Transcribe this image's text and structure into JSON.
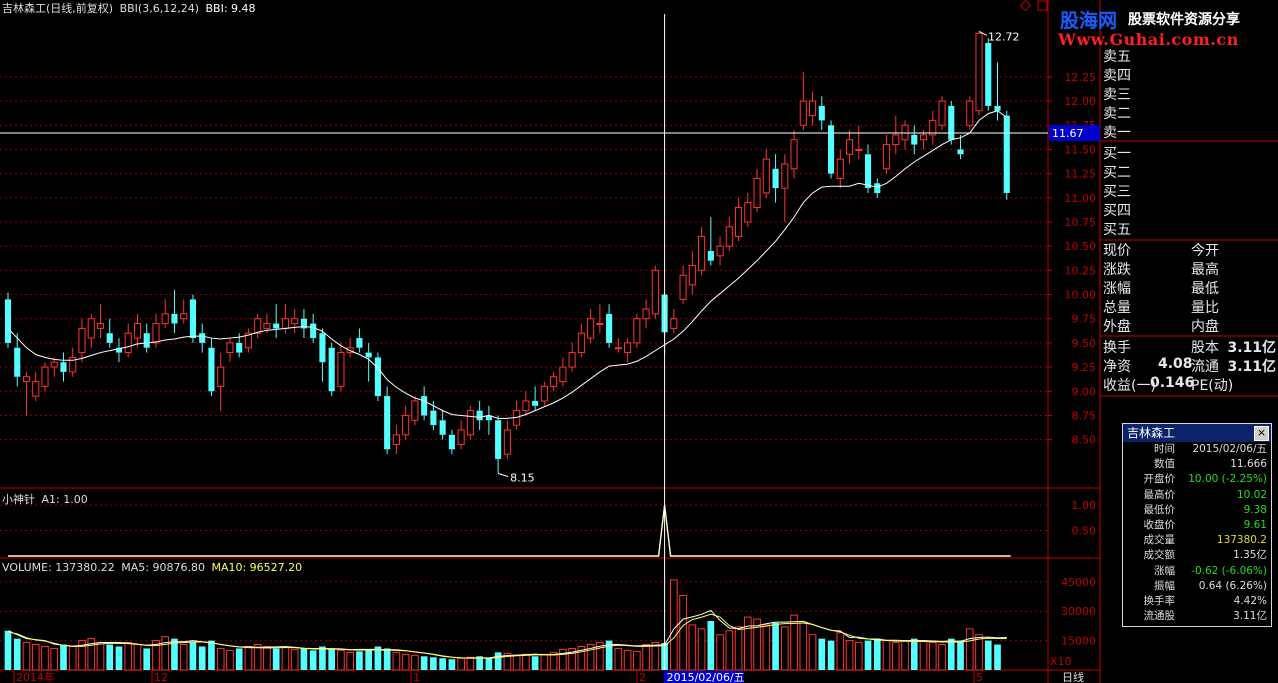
{
  "header": {
    "stock": "吉林森工(日线,前复权)",
    "indicator": "BBI(3,6,12,24)",
    "value": "BBI: 9.48",
    "sub1": "小神针",
    "sub1_value": "A1: 1.00",
    "vol_label": "VOLUME: 137380.22",
    "ma5": "MA5: 90876.80",
    "ma10": "MA10: 96527.20"
  },
  "logo": {
    "name": "股海网",
    "slogan": "股票软件资源分享",
    "url": "Www.Guhai.com.cn"
  },
  "price_axis": [
    "12.25",
    "12.00",
    "11.75",
    "11.50",
    "11.25",
    "11.00",
    "10.75",
    "10.50",
    "10.25",
    "10.00",
    "9.75",
    "9.50",
    "9.25",
    "9.00",
    "8.75",
    "8.50"
  ],
  "crosshair_price": "11.67",
  "max_label": "12.72",
  "min_label": "8.15",
  "sub_axis": [
    "1.00",
    "0.50"
  ],
  "vol_axis": [
    "45000",
    "30000",
    "15000"
  ],
  "vol_unit": "X10",
  "date_axis": [
    "2014年",
    "12",
    "1",
    "2",
    "5"
  ],
  "crosshair_date": "2015/02/06/五",
  "period": "日线",
  "order_book": {
    "sells": [
      "卖五",
      "卖四",
      "卖三",
      "卖二",
      "卖一"
    ],
    "buys": [
      "买一",
      "买二",
      "买三",
      "买四",
      "买五"
    ]
  },
  "quote": {
    "left": [
      "现价",
      "涨跌",
      "涨幅",
      "总量",
      "外盘"
    ],
    "right": [
      "今开",
      "最高",
      "最低",
      "量比",
      "内盘"
    ]
  },
  "fund": {
    "turnover_label": "换手",
    "capital_label": "股本",
    "capital": "3.11亿",
    "netasset_label": "净资",
    "netasset": "4.08",
    "float_label": "流通",
    "float": "3.11亿",
    "eps_label": "收益(一)",
    "eps": "0.146",
    "pe_label": "PE(动)"
  },
  "popup": {
    "title": "吉林森工",
    "close": "×",
    "rows": [
      {
        "k": "时间",
        "v": "2015/02/06/五",
        "c": "#dddddd"
      },
      {
        "k": "数值",
        "v": "11.666",
        "c": "#dddddd"
      },
      {
        "k": "开盘价",
        "v": "10.00 (-2.25%)",
        "c": "#22dd22"
      },
      {
        "k": "最高价",
        "v": "10.02",
        "c": "#22dd22"
      },
      {
        "k": "最低价",
        "v": "9.38",
        "c": "#22dd22"
      },
      {
        "k": "收盘价",
        "v": "9.61",
        "c": "#22dd22"
      },
      {
        "k": "成交量",
        "v": "137380.2",
        "c": "#dddd22"
      },
      {
        "k": "成交额",
        "v": "1.35亿",
        "c": "#dddddd"
      },
      {
        "k": "涨幅",
        "v": "-0.62 (-6.06%)",
        "c": "#22dd22"
      },
      {
        "k": "振幅",
        "v": "0.64 (6.26%)",
        "c": "#dddddd"
      },
      {
        "k": "换手率",
        "v": "4.42%",
        "c": "#dddddd"
      },
      {
        "k": "流通股",
        "v": "3.11亿",
        "c": "#dddddd"
      }
    ]
  },
  "colors": {
    "up": "#ff3232",
    "down": "#54ffff",
    "bbi": "#ffffff",
    "ma10": "#ffff55",
    "grid": "#8b0000",
    "axis": "#c00000"
  },
  "chart_data": {
    "type": "candlestick",
    "y_range": [
      8.0,
      12.9
    ],
    "candles": [
      [
        9.95,
        9.5,
        10.02,
        9.45
      ],
      [
        9.45,
        9.15,
        9.6,
        9.05
      ],
      [
        9.1,
        9.15,
        9.2,
        8.75
      ],
      [
        8.95,
        9.1,
        9.2,
        8.9
      ],
      [
        9.05,
        9.25,
        9.3,
        9.0
      ],
      [
        9.25,
        9.3,
        9.35,
        9.15
      ],
      [
        9.3,
        9.2,
        9.4,
        9.1
      ],
      [
        9.2,
        9.35,
        9.45,
        9.15
      ],
      [
        9.4,
        9.65,
        9.75,
        9.3
      ],
      [
        9.55,
        9.75,
        9.8,
        9.45
      ],
      [
        9.65,
        9.7,
        9.9,
        9.55
      ],
      [
        9.6,
        9.5,
        9.75,
        9.45
      ],
      [
        9.45,
        9.4,
        9.55,
        9.3
      ],
      [
        9.4,
        9.6,
        9.7,
        9.35
      ],
      [
        9.55,
        9.7,
        9.8,
        9.45
      ],
      [
        9.6,
        9.45,
        9.7,
        9.4
      ],
      [
        9.5,
        9.7,
        9.8,
        9.45
      ],
      [
        9.7,
        9.8,
        9.95,
        9.65
      ],
      [
        9.8,
        9.7,
        10.05,
        9.6
      ],
      [
        9.75,
        9.8,
        9.95,
        9.7
      ],
      [
        9.95,
        9.55,
        10.0,
        9.5
      ],
      [
        9.6,
        9.5,
        9.7,
        9.4
      ],
      [
        9.45,
        9.0,
        9.55,
        8.95
      ],
      [
        9.05,
        9.25,
        9.4,
        8.8
      ],
      [
        9.4,
        9.5,
        9.55,
        9.3
      ],
      [
        9.5,
        9.4,
        9.6,
        9.35
      ],
      [
        9.45,
        9.6,
        9.65,
        9.4
      ],
      [
        9.6,
        9.75,
        9.8,
        9.55
      ],
      [
        9.65,
        9.7,
        9.8,
        9.6
      ],
      [
        9.7,
        9.65,
        9.9,
        9.55
      ],
      [
        9.65,
        9.75,
        9.9,
        9.6
      ],
      [
        9.7,
        9.75,
        9.85,
        9.6
      ],
      [
        9.75,
        9.65,
        9.85,
        9.55
      ],
      [
        9.7,
        9.55,
        9.8,
        9.5
      ],
      [
        9.6,
        9.3,
        9.65,
        9.1
      ],
      [
        9.45,
        9.0,
        9.5,
        8.95
      ],
      [
        9.05,
        9.4,
        9.5,
        9.0
      ],
      [
        9.4,
        9.45,
        9.55,
        9.35
      ],
      [
        9.55,
        9.45,
        9.65,
        9.4
      ],
      [
        9.4,
        9.35,
        9.5,
        9.1
      ],
      [
        9.35,
        8.95,
        9.4,
        8.9
      ],
      [
        8.95,
        8.4,
        9.05,
        8.35
      ],
      [
        8.45,
        8.55,
        8.65,
        8.35
      ],
      [
        8.55,
        8.75,
        8.85,
        8.5
      ],
      [
        8.7,
        8.9,
        8.95,
        8.65
      ],
      [
        8.95,
        8.75,
        9.05,
        8.7
      ],
      [
        8.8,
        8.65,
        8.9,
        8.6
      ],
      [
        8.7,
        8.55,
        8.8,
        8.5
      ],
      [
        8.55,
        8.4,
        8.6,
        8.35
      ],
      [
        8.45,
        8.6,
        8.7,
        8.4
      ],
      [
        8.55,
        8.8,
        8.85,
        8.5
      ],
      [
        8.8,
        8.7,
        8.9,
        8.6
      ],
      [
        8.75,
        8.7,
        8.85,
        8.55
      ],
      [
        8.7,
        8.3,
        8.75,
        8.15
      ],
      [
        8.35,
        8.6,
        8.7,
        8.3
      ],
      [
        8.65,
        8.8,
        8.9,
        8.6
      ],
      [
        8.8,
        8.9,
        9.0,
        8.75
      ],
      [
        8.9,
        8.85,
        9.05,
        8.8
      ],
      [
        8.9,
        9.05,
        9.1,
        8.85
      ],
      [
        9.05,
        9.15,
        9.2,
        9.0
      ],
      [
        9.1,
        9.25,
        9.35,
        9.05
      ],
      [
        9.25,
        9.4,
        9.5,
        9.2
      ],
      [
        9.4,
        9.6,
        9.7,
        9.35
      ],
      [
        9.55,
        9.75,
        9.85,
        9.5
      ],
      [
        9.7,
        9.7,
        9.9,
        9.6
      ],
      [
        9.8,
        9.5,
        9.9,
        9.45
      ],
      [
        9.45,
        9.45,
        9.55,
        9.4
      ],
      [
        9.4,
        9.5,
        9.55,
        9.3
      ],
      [
        9.5,
        9.75,
        9.8,
        9.45
      ],
      [
        9.75,
        9.85,
        9.95,
        9.65
      ],
      [
        9.8,
        10.25,
        10.3,
        9.75
      ],
      [
        10.0,
        9.61,
        10.02,
        9.38
      ],
      [
        9.65,
        9.75,
        9.85,
        9.6
      ],
      [
        9.95,
        10.2,
        10.3,
        9.9
      ],
      [
        10.1,
        10.3,
        10.45,
        10.0
      ],
      [
        10.25,
        10.6,
        10.7,
        10.2
      ],
      [
        10.45,
        10.35,
        10.8,
        10.3
      ],
      [
        10.4,
        10.5,
        10.6,
        10.3
      ],
      [
        10.5,
        10.7,
        10.8,
        10.45
      ],
      [
        10.6,
        10.9,
        11.0,
        10.55
      ],
      [
        10.75,
        10.95,
        11.05,
        10.7
      ],
      [
        10.9,
        11.2,
        11.3,
        10.85
      ],
      [
        11.05,
        11.4,
        11.5,
        11.0
      ],
      [
        11.3,
        11.1,
        11.45,
        10.95
      ],
      [
        11.1,
        11.35,
        11.45,
        10.75
      ],
      [
        11.3,
        11.6,
        11.7,
        11.2
      ],
      [
        11.75,
        12.0,
        12.3,
        11.7
      ],
      [
        11.85,
        12.0,
        12.1,
        11.75
      ],
      [
        11.95,
        11.8,
        12.05,
        11.7
      ],
      [
        11.75,
        11.25,
        11.8,
        11.2
      ],
      [
        11.2,
        11.4,
        11.5,
        11.1
      ],
      [
        11.45,
        11.6,
        11.7,
        11.35
      ],
      [
        11.5,
        11.5,
        11.75,
        11.4
      ],
      [
        11.45,
        11.1,
        11.55,
        11.05
      ],
      [
        11.15,
        11.05,
        11.2,
        11.0
      ],
      [
        11.3,
        11.55,
        11.65,
        11.25
      ],
      [
        11.55,
        11.65,
        11.85,
        11.45
      ],
      [
        11.6,
        11.75,
        11.8,
        11.5
      ],
      [
        11.65,
        11.55,
        11.75,
        11.45
      ],
      [
        11.6,
        11.65,
        11.7,
        11.5
      ],
      [
        11.65,
        11.8,
        11.9,
        11.55
      ],
      [
        11.75,
        12.0,
        12.05,
        11.7
      ],
      [
        11.95,
        11.6,
        12.0,
        11.55
      ],
      [
        11.5,
        11.45,
        11.65,
        11.4
      ],
      [
        11.75,
        12.0,
        12.05,
        11.7
      ],
      [
        11.9,
        12.7,
        12.72,
        11.85
      ],
      [
        12.6,
        11.95,
        12.65,
        11.9
      ],
      [
        11.95,
        11.9,
        12.4,
        11.8
      ],
      [
        11.85,
        11.05,
        11.9,
        10.98
      ]
    ],
    "bbi": [
      9.65,
      9.55,
      9.45,
      9.38,
      9.35,
      9.33,
      9.32,
      9.32,
      9.34,
      9.37,
      9.4,
      9.42,
      9.44,
      9.46,
      9.49,
      9.5,
      9.51,
      9.53,
      9.54,
      9.56,
      9.57,
      9.57,
      9.55,
      9.54,
      9.55,
      9.56,
      9.58,
      9.61,
      9.63,
      9.64,
      9.65,
      9.66,
      9.67,
      9.66,
      9.62,
      9.54,
      9.47,
      9.42,
      9.38,
      9.33,
      9.24,
      9.12,
      9.04,
      8.98,
      8.93,
      8.9,
      8.85,
      8.8,
      8.76,
      8.75,
      8.74,
      8.73,
      8.75,
      8.72,
      8.72,
      8.73,
      8.76,
      8.8,
      8.84,
      8.88,
      8.93,
      8.99,
      9.06,
      9.13,
      9.2,
      9.26,
      9.27,
      9.28,
      9.31,
      9.36,
      9.42,
      9.48,
      9.54,
      9.62,
      9.72,
      9.83,
      9.93,
      10.01,
      10.09,
      10.17,
      10.26,
      10.35,
      10.45,
      10.55,
      10.67,
      10.8,
      10.95,
      11.05,
      11.11,
      11.12,
      11.12,
      11.12,
      11.15,
      11.13,
      11.11,
      11.15,
      11.22,
      11.3,
      11.37,
      11.43,
      11.49,
      11.55,
      11.6,
      11.62,
      11.67,
      11.8,
      11.87,
      11.9,
      11.83
    ],
    "signal": {
      "index": 71,
      "value": 1.0
    },
    "volume": [
      20000,
      16000,
      14000,
      13000,
      12000,
      11000,
      13000,
      12000,
      15000,
      16000,
      14000,
      13000,
      12000,
      14000,
      13000,
      11000,
      15000,
      17000,
      16000,
      13000,
      14000,
      12000,
      15000,
      11000,
      10000,
      11000,
      12000,
      13000,
      12000,
      11000,
      11500,
      10500,
      11000,
      10000,
      12000,
      11000,
      10000,
      9000,
      9500,
      10000,
      12000,
      11000,
      9000,
      8000,
      7500,
      7000,
      6500,
      6000,
      5500,
      6000,
      6500,
      7000,
      6000,
      9000,
      8500,
      7500,
      8000,
      7000,
      8000,
      9000,
      10500,
      11000,
      12000,
      13000,
      14000,
      15000,
      11000,
      10000,
      9500,
      13000,
      14000,
      13738,
      46000,
      38000,
      23000,
      21000,
      25000,
      18000,
      20000,
      22000,
      27000,
      26000,
      23000,
      24000,
      22000,
      28000,
      24000,
      18000,
      16000,
      15000,
      19000,
      15000,
      14000,
      15000,
      16000,
      15000,
      14000,
      15000,
      16000,
      15000,
      14000,
      13000,
      16000,
      15000,
      21000,
      18000,
      15000,
      13000
    ],
    "ma5": [
      20000,
      18000,
      16000,
      15500,
      15000,
      13200,
      12600,
      12200,
      12600,
      13400,
      14000,
      14000,
      14000,
      13800,
      13200,
      12600,
      13000,
      14000,
      14400,
      14400,
      15000,
      14400,
      14000,
      13000,
      12400,
      11800,
      11800,
      11600,
      11600,
      11800,
      11900,
      11600,
      11100,
      11000,
      11000,
      10900,
      10800,
      10400,
      10500,
      10500,
      10500,
      10300,
      10300,
      9900,
      9200,
      8700,
      7900,
      7000,
      6500,
      6200,
      6200,
      6200,
      6200,
      6900,
      7400,
      7600,
      7800,
      8100,
      7800,
      8000,
      8400,
      9100,
      10100,
      11000,
      12100,
      13000,
      13000,
      12600,
      12300,
      12500,
      12700,
      12800,
      20900,
      25900,
      27100,
      28400,
      30400,
      25300,
      21400,
      21200,
      22400,
      22600,
      23600,
      24400,
      24400,
      24600,
      24800,
      23200,
      21600,
      20200,
      19900,
      16600,
      16800,
      15800,
      15800,
      15200,
      15200,
      15000,
      15000,
      15000,
      14800,
      14600,
      14800,
      14600,
      16000,
      16600,
      16800,
      16400,
      16600
    ]
  }
}
